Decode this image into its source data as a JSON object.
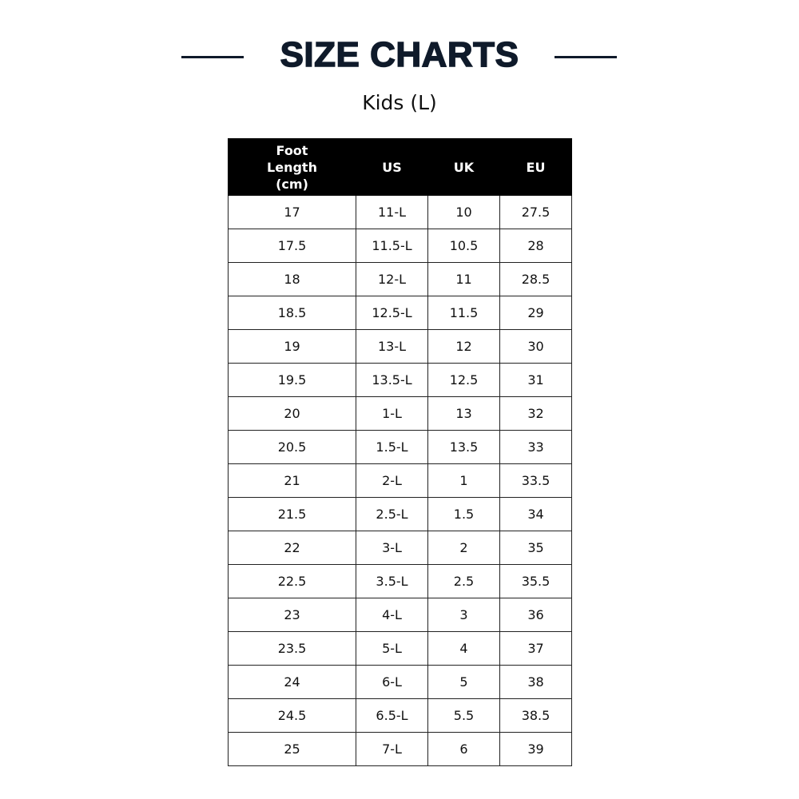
{
  "title": "SIZE CHARTS",
  "subtitle": "Kids (L)",
  "table": {
    "headers": [
      "Foot Length (cm)",
      "US",
      "UK",
      "EU"
    ],
    "rows": [
      [
        "17",
        "11-L",
        "10",
        "27.5"
      ],
      [
        "17.5",
        "11.5-L",
        "10.5",
        "28"
      ],
      [
        "18",
        "12-L",
        "11",
        "28.5"
      ],
      [
        "18.5",
        "12.5-L",
        "11.5",
        "29"
      ],
      [
        "19",
        "13-L",
        "12",
        "30"
      ],
      [
        "19.5",
        "13.5-L",
        "12.5",
        "31"
      ],
      [
        "20",
        "1-L",
        "13",
        "32"
      ],
      [
        "20.5",
        "1.5-L",
        "13.5",
        "33"
      ],
      [
        "21",
        "2-L",
        "1",
        "33.5"
      ],
      [
        "21.5",
        "2.5-L",
        "1.5",
        "34"
      ],
      [
        "22",
        "3-L",
        "2",
        "35"
      ],
      [
        "22.5",
        "3.5-L",
        "2.5",
        "35.5"
      ],
      [
        "23",
        "4-L",
        "3",
        "36"
      ],
      [
        "23.5",
        "5-L",
        "4",
        "37"
      ],
      [
        "24",
        "6-L",
        "5",
        "38"
      ],
      [
        "24.5",
        "6.5-L",
        "5.5",
        "38.5"
      ],
      [
        "25",
        "7-L",
        "6",
        "39"
      ]
    ]
  },
  "colors": {
    "title": "#0f1a2a",
    "header_bg": "#000000",
    "header_text": "#ffffff"
  }
}
